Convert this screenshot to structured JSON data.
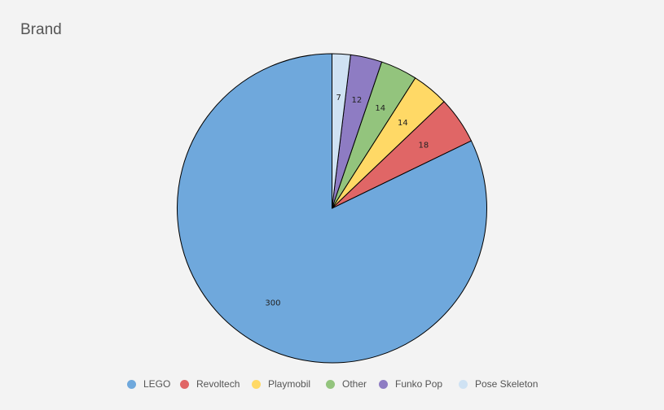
{
  "chart_data": {
    "type": "pie",
    "title": "Brand",
    "categories": [
      "LEGO",
      "Revoltech",
      "Playmobil",
      "Other",
      "Funko Pop",
      "Pose Skeleton"
    ],
    "values": [
      300,
      18,
      14,
      14,
      12,
      7
    ],
    "colors": [
      "#6fa8dc",
      "#e06666",
      "#ffd966",
      "#93c47d",
      "#8e7cc3",
      "#cfe2f3"
    ],
    "start_angle": "12 o'clock",
    "direction": "counterclockwise",
    "legend_position": "bottom"
  }
}
